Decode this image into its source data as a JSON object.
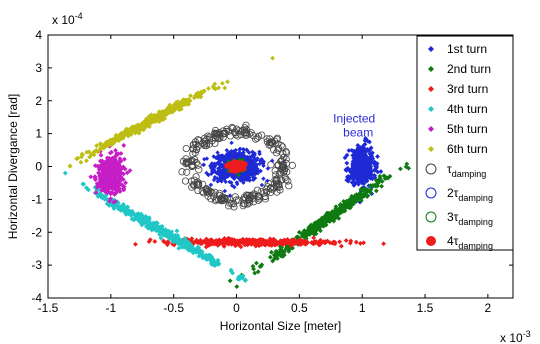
{
  "chart_data": {
    "type": "scatter",
    "xlabel": "Horizontal Size [meter]",
    "ylabel": "Horizontal Divergance [rad]",
    "x_multiplier": "x 10",
    "x_multiplier_exp": "-3",
    "y_multiplier": "x 10",
    "y_multiplier_exp": "-4",
    "xlim": [
      -1.5,
      2.2
    ],
    "ylim": [
      -4,
      4
    ],
    "xticks": [
      "-1.5",
      "-1",
      "-0.5",
      "0",
      "0.5",
      "1",
      "1.5",
      "2"
    ],
    "xtick_values": [
      -1.5,
      -1,
      -0.5,
      0,
      0.5,
      1,
      1.5,
      2
    ],
    "yticks": [
      "-4",
      "-3",
      "-2",
      "-1",
      "0",
      "1",
      "2",
      "3",
      "4"
    ],
    "ytick_values": [
      -4,
      -3,
      -2,
      -1,
      0,
      1,
      2,
      3,
      4
    ],
    "grid": false,
    "legend_position": "top-right",
    "annotation": {
      "line1": "Injected",
      "line2": "beam",
      "x": 1.0,
      "y": 1.1
    },
    "clouds": [
      {
        "name": "1st turn",
        "color": "#1f2ad6",
        "marker": "diamond",
        "center": [
          1.0,
          0.0
        ],
        "spread": [
          0.07,
          0.45
        ],
        "angle": 88,
        "count": 420
      },
      {
        "name": "2nd turn",
        "color": "#0f7a12",
        "marker": "diamond",
        "center": [
          0.72,
          -1.6
        ],
        "spread": [
          0.25,
          0.18
        ],
        "angle": 35,
        "count": 420
      },
      {
        "name": "3rd turn",
        "color": "#ee1c1c",
        "marker": "diamond",
        "center": [
          0.1,
          -2.3
        ],
        "spread": [
          0.3,
          0.12
        ],
        "angle": 0,
        "count": 420
      },
      {
        "name": "4th turn",
        "color": "#21c7c7",
        "marker": "diamond",
        "center": [
          -0.6,
          -1.95
        ],
        "spread": [
          0.28,
          0.16
        ],
        "angle": -30,
        "count": 420
      },
      {
        "name": "5th turn",
        "color": "#c61ec6",
        "marker": "diamond",
        "center": [
          -1.0,
          -0.25
        ],
        "spread": [
          0.07,
          0.45
        ],
        "angle": 85,
        "count": 420
      },
      {
        "name": "6th turn",
        "color": "#bdbd13",
        "marker": "diamond",
        "center": [
          -0.7,
          1.35
        ],
        "spread": [
          0.24,
          0.14
        ],
        "angle": 28,
        "count": 420
      }
    ],
    "damping": [
      {
        "name": "τ",
        "sub": "damping",
        "color": "#444444",
        "marker": "open-circle",
        "shape": "ring",
        "rx": 0.38,
        "ry": 1.05,
        "width": 0.08,
        "count": 260
      },
      {
        "name": "2τ",
        "sub": "damping",
        "color": "#1f2ad6",
        "marker": "open-circle",
        "shape": "cloud",
        "sx": 0.09,
        "sy": 0.22,
        "count": 650
      },
      {
        "name": "3τ",
        "sub": "damping",
        "color": "#0f7a12",
        "marker": "open-circle",
        "shape": "cloud",
        "sx": 0.03,
        "sy": 0.1,
        "count": 80
      },
      {
        "name": "4τ",
        "sub": "damping",
        "color": "#ee1c1c",
        "marker": "filled-circle",
        "shape": "cloud",
        "sx": 0.025,
        "sy": 0.06,
        "count": 60
      }
    ]
  }
}
